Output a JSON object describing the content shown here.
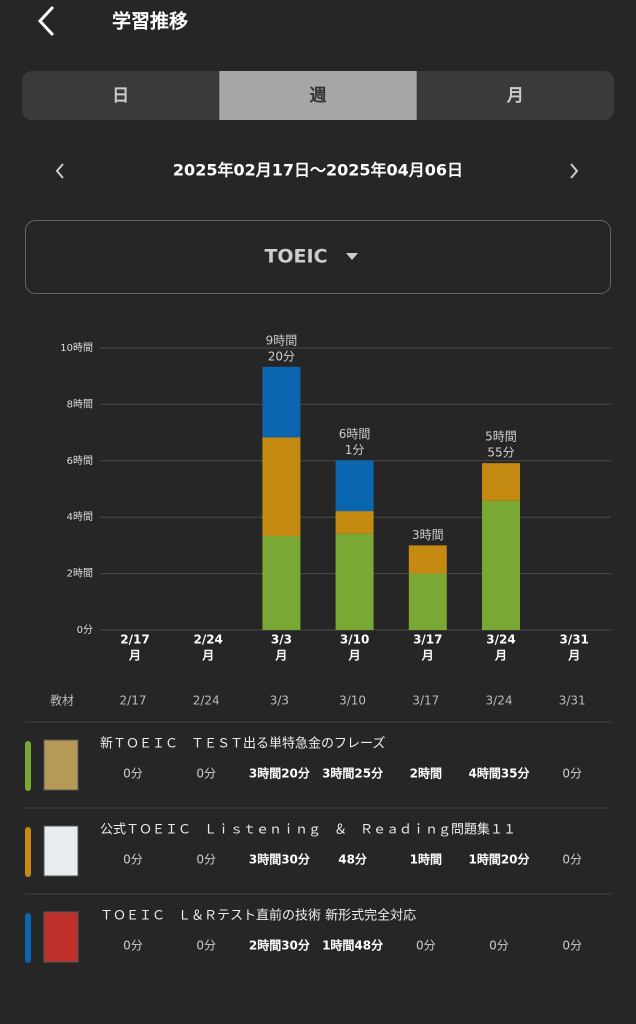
{
  "header": {
    "title": "学習推移"
  },
  "tabs": [
    "日",
    "週",
    "月"
  ],
  "selected_tab": 1,
  "date_range": "2025年02月17日〜2025年04月06日",
  "selector": "TOEIC",
  "chart_data": {
    "type": "stacked_bar",
    "categories": [
      "2/17",
      "2/24",
      "3/3",
      "3/10",
      "3/17",
      "3/24",
      "3/31"
    ],
    "weekday_labels": [
      "月",
      "月",
      "月",
      "月",
      "月",
      "月",
      "月"
    ],
    "total_labels": [
      null,
      null,
      [
        "9時間",
        "20分"
      ],
      [
        "6時間",
        "1分"
      ],
      [
        "3時間"
      ],
      [
        "5時間",
        "55分"
      ],
      null
    ],
    "series": [
      {
        "name": "新ＴＯＥＩＣ　ＴＥＳＴ出る単特急金のフレーズ",
        "color": "#7aa834",
        "values": [
          0,
          0,
          3.333,
          3.417,
          2,
          4.583,
          0
        ],
        "value_labels": [
          "0分",
          "0分",
          "3時間20分",
          "3時間25分",
          "2時間",
          "4時間35分",
          "0分"
        ]
      },
      {
        "name": "公式ＴＯＥＩＣ　Ｌｉｓｔｅｎｉｎｇ　＆　Ｒｅａｄｉｎｇ問題集１１",
        "color": "#c48a12",
        "values": [
          0,
          0,
          3.5,
          0.8,
          1,
          1.333,
          0
        ],
        "value_labels": [
          "0分",
          "0分",
          "3時間30分",
          "48分",
          "1時間",
          "1時間20分",
          "0分"
        ]
      },
      {
        "name": "ＴＯＥＩＣ　Ｌ＆Ｒテスト直前の技術 新形式完全対応",
        "color": "#0a66b0",
        "values": [
          0,
          0,
          2.5,
          1.8,
          0,
          0,
          0
        ],
        "value_labels": [
          "0分",
          "0分",
          "2時間30分",
          "1時間48分",
          "0分",
          "0分",
          "0分"
        ]
      }
    ],
    "ylim": [
      0,
      10
    ],
    "yticks": [
      {
        "value": 0,
        "label": "0分"
      },
      {
        "value": 2,
        "label": "2時間"
      },
      {
        "value": 4,
        "label": "4時間"
      },
      {
        "value": 6,
        "label": "6時間"
      },
      {
        "value": 8,
        "label": "8時間"
      },
      {
        "value": 10,
        "label": "10時間"
      }
    ],
    "grid": true
  },
  "table": {
    "header": "教材"
  }
}
